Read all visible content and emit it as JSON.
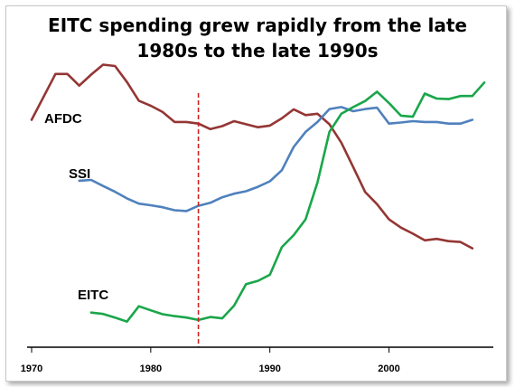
{
  "chart_data": {
    "type": "line",
    "title_lines": [
      "EITC spending grew rapidly from the late",
      "1980s to the late 1990s"
    ],
    "xlabel": "",
    "ylabel": "",
    "xlim": [
      1970,
      2008
    ],
    "ylim": [
      0,
      100
    ],
    "x_ticks": [
      1970,
      1980,
      1990,
      2000
    ],
    "grid": false,
    "reference_line": {
      "x": 1984,
      "style": "dashed",
      "color": "#cc2222"
    },
    "series": [
      {
        "name": "AFDC",
        "color": "#943634",
        "points": [
          [
            1970,
            80.5
          ],
          [
            1972,
            97.1
          ],
          [
            1973,
            97.1
          ],
          [
            1974,
            92.9
          ],
          [
            1975,
            96.9
          ],
          [
            1976,
            100.5
          ],
          [
            1977,
            100.0
          ],
          [
            1978,
            94.2
          ],
          [
            1979,
            87.4
          ],
          [
            1980,
            85.6
          ],
          [
            1981,
            83.3
          ],
          [
            1982,
            79.7
          ],
          [
            1983,
            79.7
          ],
          [
            1984,
            79.1
          ],
          [
            1985,
            77.1
          ],
          [
            1986,
            78.2
          ],
          [
            1987,
            80.0
          ],
          [
            1988,
            78.9
          ],
          [
            1989,
            77.8
          ],
          [
            1990,
            78.4
          ],
          [
            1991,
            81.0
          ],
          [
            1992,
            84.3
          ],
          [
            1993,
            82.2
          ],
          [
            1994,
            82.7
          ],
          [
            1995,
            78.9
          ],
          [
            1996,
            72.2
          ],
          [
            1997,
            63.3
          ],
          [
            1998,
            54.3
          ],
          [
            1999,
            49.9
          ],
          [
            2000,
            44.4
          ],
          [
            2001,
            41.4
          ],
          [
            2002,
            39.2
          ],
          [
            2003,
            36.8
          ],
          [
            2004,
            37.3
          ],
          [
            2005,
            36.5
          ],
          [
            2006,
            36.2
          ],
          [
            2007,
            33.9
          ]
        ]
      },
      {
        "name": "SSI",
        "color": "#4f81bd",
        "points": [
          [
            1974,
            58.4
          ],
          [
            1975,
            58.7
          ],
          [
            1976,
            56.5
          ],
          [
            1977,
            54.4
          ],
          [
            1978,
            52.0
          ],
          [
            1979,
            50.1
          ],
          [
            1980,
            49.5
          ],
          [
            1981,
            48.8
          ],
          [
            1982,
            47.7
          ],
          [
            1983,
            47.4
          ],
          [
            1984,
            49.3
          ],
          [
            1985,
            50.4
          ],
          [
            1986,
            52.4
          ],
          [
            1987,
            53.7
          ],
          [
            1988,
            54.6
          ],
          [
            1989,
            56.2
          ],
          [
            1990,
            58.2
          ],
          [
            1991,
            62.2
          ],
          [
            1992,
            70.7
          ],
          [
            1993,
            76.1
          ],
          [
            1994,
            79.7
          ],
          [
            1995,
            84.4
          ],
          [
            1996,
            85.1
          ],
          [
            1997,
            83.6
          ],
          [
            1998,
            84.4
          ],
          [
            1999,
            84.9
          ],
          [
            2000,
            79.1
          ],
          [
            2001,
            79.5
          ],
          [
            2002,
            80.0
          ],
          [
            2003,
            79.7
          ],
          [
            2004,
            79.7
          ],
          [
            2005,
            79.1
          ],
          [
            2006,
            79.1
          ],
          [
            2007,
            80.5
          ]
        ]
      },
      {
        "name": "EITC",
        "color": "#1aa64a",
        "points": [
          [
            1975,
            10.6
          ],
          [
            1976,
            10.1
          ],
          [
            1977,
            8.8
          ],
          [
            1978,
            7.3
          ],
          [
            1979,
            12.9
          ],
          [
            1980,
            11.4
          ],
          [
            1981,
            10.0
          ],
          [
            1982,
            9.3
          ],
          [
            1983,
            8.8
          ],
          [
            1984,
            7.9
          ],
          [
            1985,
            9.0
          ],
          [
            1986,
            8.5
          ],
          [
            1987,
            13.1
          ],
          [
            1988,
            20.9
          ],
          [
            1989,
            22.1
          ],
          [
            1990,
            24.3
          ],
          [
            1991,
            34.3
          ],
          [
            1992,
            38.7
          ],
          [
            1993,
            44.4
          ],
          [
            1994,
            57.8
          ],
          [
            1995,
            76.1
          ],
          [
            1996,
            82.7
          ],
          [
            1997,
            85.1
          ],
          [
            1998,
            87.3
          ],
          [
            1999,
            90.7
          ],
          [
            2000,
            86.6
          ],
          [
            2001,
            82.0
          ],
          [
            2002,
            81.6
          ],
          [
            2003,
            90.0
          ],
          [
            2004,
            88.2
          ],
          [
            2005,
            88.0
          ],
          [
            2006,
            89.1
          ],
          [
            2007,
            89.1
          ],
          [
            2008,
            94.0
          ]
        ]
      }
    ]
  }
}
